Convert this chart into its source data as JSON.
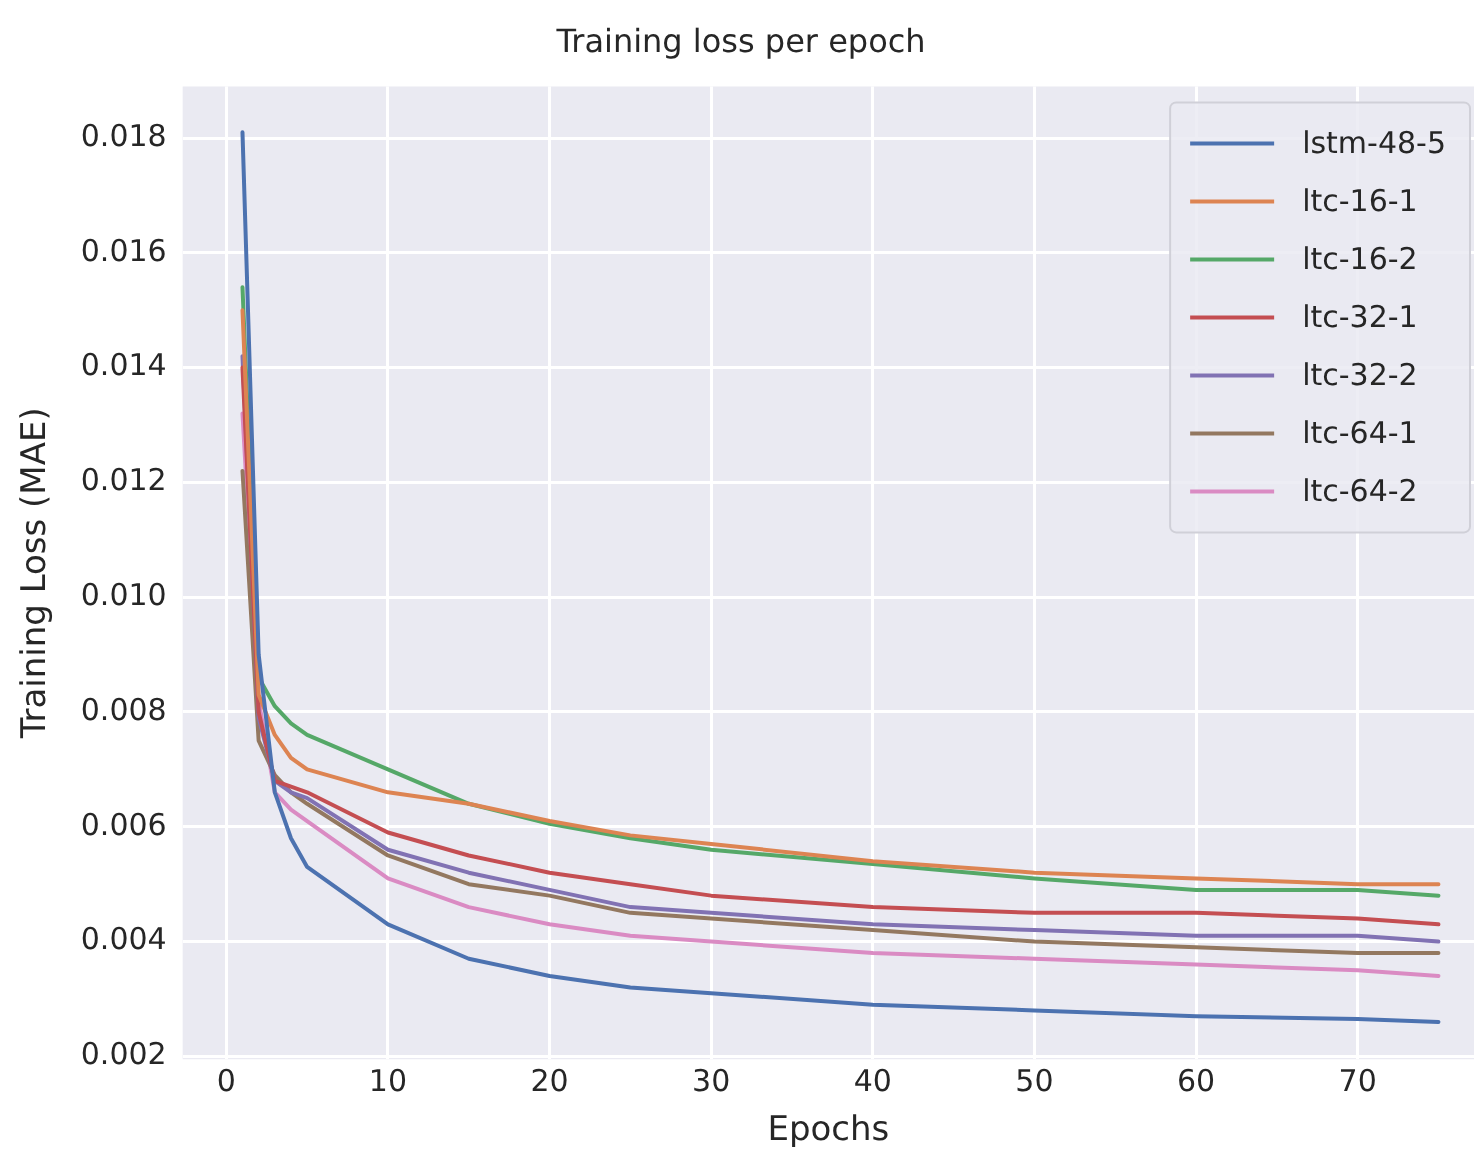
{
  "chart_data": {
    "type": "line",
    "title": "Training loss per epoch",
    "xlabel": "Epochs",
    "ylabel": "Training Loss (MAE)",
    "x": [
      1,
      2,
      3,
      4,
      5,
      10,
      15,
      20,
      25,
      30,
      40,
      50,
      60,
      70,
      75
    ],
    "series": [
      {
        "name": "lstm-48-5",
        "color": "#4c72b0",
        "values": [
          0.0181,
          0.009,
          0.0066,
          0.0058,
          0.0053,
          0.0043,
          0.0037,
          0.0034,
          0.0032,
          0.0031,
          0.0029,
          0.0028,
          0.0027,
          0.00265,
          0.0026
        ]
      },
      {
        "name": "ltc-16-1",
        "color": "#dd8452",
        "values": [
          0.015,
          0.0083,
          0.0076,
          0.0072,
          0.007,
          0.0066,
          0.0064,
          0.0061,
          0.00585,
          0.0057,
          0.0054,
          0.0052,
          0.0051,
          0.005,
          0.005
        ]
      },
      {
        "name": "ltc-16-2",
        "color": "#55a868",
        "values": [
          0.0154,
          0.0086,
          0.0081,
          0.0078,
          0.0076,
          0.007,
          0.0064,
          0.00605,
          0.0058,
          0.0056,
          0.00535,
          0.0051,
          0.0049,
          0.0049,
          0.0048
        ]
      },
      {
        "name": "ltc-32-1",
        "color": "#c44e52",
        "values": [
          0.014,
          0.008,
          0.0068,
          0.0067,
          0.0066,
          0.0059,
          0.0055,
          0.0052,
          0.005,
          0.0048,
          0.0046,
          0.0045,
          0.0045,
          0.0044,
          0.0043
        ]
      },
      {
        "name": "ltc-32-2",
        "color": "#8172b3",
        "values": [
          0.0142,
          0.0079,
          0.0068,
          0.0066,
          0.0065,
          0.0056,
          0.0052,
          0.0049,
          0.0046,
          0.0045,
          0.0043,
          0.0042,
          0.0041,
          0.0041,
          0.004
        ]
      },
      {
        "name": "ltc-64-1",
        "color": "#937860",
        "values": [
          0.0122,
          0.0075,
          0.0069,
          0.0066,
          0.0064,
          0.0055,
          0.005,
          0.0048,
          0.0045,
          0.0044,
          0.0042,
          0.004,
          0.0039,
          0.0038,
          0.0038
        ]
      },
      {
        "name": "ltc-64-2",
        "color": "#da8bc3",
        "values": [
          0.0132,
          0.0082,
          0.0066,
          0.0063,
          0.0061,
          0.0051,
          0.0046,
          0.0043,
          0.0041,
          0.004,
          0.0038,
          0.0037,
          0.0036,
          0.0035,
          0.0034
        ]
      }
    ],
    "xlim": [
      -2.7,
      77.2
    ],
    "xticks": [
      0,
      10,
      20,
      30,
      40,
      50,
      60,
      70
    ],
    "ylim": [
      0.00195,
      0.0189
    ],
    "yticks": [
      0.002,
      0.004,
      0.006,
      0.008,
      {
        "value": 0.01,
        "label": "0.010"
      },
      0.012,
      0.014,
      0.016,
      0.018
    ],
    "grid": true,
    "legend": "top right",
    "marker": "none",
    "line_style": "solid"
  }
}
